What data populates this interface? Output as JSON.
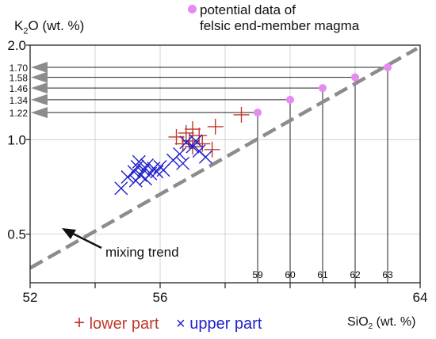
{
  "chart_data": {
    "type": "scatter",
    "x_axis": {
      "range": [
        52,
        64
      ],
      "ticks": [
        52,
        56,
        64
      ],
      "tick_labels": [
        "52",
        "56",
        "64"
      ]
    },
    "y_axis": {
      "scale": "log",
      "range": [
        0.35,
        2.0
      ],
      "ticks": [
        0.5,
        1.0,
        2.0
      ],
      "tick_labels": [
        "0.5",
        "1.0",
        "2.0"
      ]
    },
    "ylabel": {
      "pre": "K",
      "sub": "2",
      "post": "O (wt. %)"
    },
    "xlabel": {
      "pre": "SiO",
      "sub": "2",
      "post": " (wt. %)"
    },
    "legend_top": [
      "potential data of",
      "felsic end-member magma"
    ],
    "legend_bottom": {
      "lower_mark": "+",
      "lower_label": "lower part",
      "upper_mark": "×",
      "upper_label": "upper part"
    },
    "annotation": "mixing trend",
    "colors": {
      "lower": "#c0392b",
      "upper": "#1f1fcc",
      "felsic": "#e58cf0",
      "trend": "#8c8c8c",
      "arrow": "#8c8c8c"
    },
    "mixing_trend": {
      "x": [
        52,
        63.9
      ],
      "y": [
        0.39,
        1.95
      ]
    },
    "felsic_points": [
      {
        "x": 59,
        "y": 1.22,
        "x_label": "59",
        "y_label": "1.22"
      },
      {
        "x": 60,
        "y": 1.34,
        "x_label": "60",
        "y_label": "1.34"
      },
      {
        "x": 61,
        "y": 1.46,
        "x_label": "61",
        "y_label": "1.46"
      },
      {
        "x": 62,
        "y": 1.58,
        "x_label": "62",
        "y_label": "1.58"
      },
      {
        "x": 63,
        "y": 1.7,
        "x_label": "63",
        "y_label": "1.70"
      }
    ],
    "series": [
      {
        "name": "lower part",
        "marker": "plus",
        "points": [
          [
            56.5,
            1.02
          ],
          [
            56.8,
            1.05
          ],
          [
            57.0,
            1.08
          ],
          [
            56.9,
            0.99
          ],
          [
            57.2,
            1.03
          ],
          [
            57.3,
            0.97
          ],
          [
            57.6,
            0.93
          ],
          [
            57.7,
            1.1
          ],
          [
            57.0,
            0.95
          ],
          [
            56.7,
            0.97
          ],
          [
            58.5,
            1.2
          ]
        ]
      },
      {
        "name": "upper part",
        "marker": "x",
        "points": [
          [
            54.8,
            0.7
          ],
          [
            55.0,
            0.76
          ],
          [
            55.2,
            0.79
          ],
          [
            55.3,
            0.82
          ],
          [
            55.4,
            0.77
          ],
          [
            55.5,
            0.8
          ],
          [
            55.6,
            0.83
          ],
          [
            55.7,
            0.78
          ],
          [
            55.8,
            0.81
          ],
          [
            55.9,
            0.79
          ],
          [
            56.0,
            0.82
          ],
          [
            56.1,
            0.8
          ],
          [
            55.35,
            0.85
          ],
          [
            55.25,
            0.74
          ],
          [
            55.55,
            0.75
          ],
          [
            56.4,
            0.86
          ],
          [
            56.6,
            0.9
          ],
          [
            56.8,
            0.98
          ],
          [
            57.0,
            0.95
          ],
          [
            57.2,
            0.92
          ],
          [
            57.4,
            0.88
          ],
          [
            56.7,
            0.84
          ],
          [
            57.1,
            0.99
          ]
        ]
      }
    ]
  }
}
